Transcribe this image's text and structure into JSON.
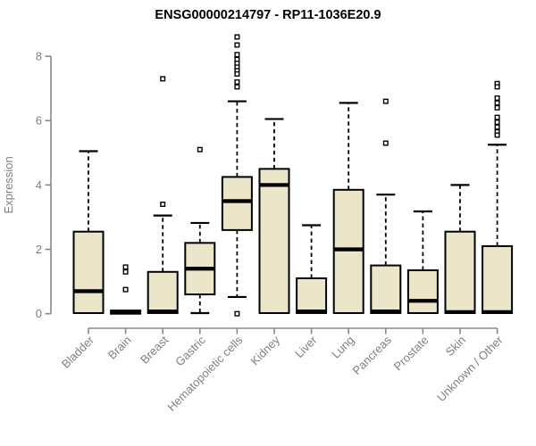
{
  "colors": {
    "background": "#ffffff",
    "box_fill": "#EBE5CA",
    "box_stroke": "#000000",
    "median_color": "#000000",
    "whisker_color": "#000000",
    "outlier_stroke": "#000000",
    "outlier_fill": "#ffffff",
    "axis_line": "#888888",
    "axis_text": "#808080",
    "title_color": "#000000"
  },
  "chart_data": {
    "type": "boxplot",
    "title": "ENSG00000214797 - RP11-1036E20.9",
    "xlabel": "",
    "ylabel": "Expression",
    "ylim": [
      0,
      8.7
    ],
    "yticks": [
      0,
      2,
      4,
      6,
      8
    ],
    "grid": "off",
    "legend": "none",
    "categories": [
      "Bladder",
      "Brain",
      "Breast",
      "Gastric",
      "Hematopoietic cells",
      "Kidney",
      "Liver",
      "Lung",
      "Pancreas",
      "Prostate",
      "Skin",
      "Unknown / Other"
    ],
    "series": [
      {
        "name": "Bladder",
        "whisker_low": 0.02,
        "q1": 0.02,
        "median": 0.7,
        "q3": 2.55,
        "whisker_high": 5.05,
        "outliers": []
      },
      {
        "name": "Brain",
        "whisker_low": 0.0,
        "q1": 0.0,
        "median": 0.04,
        "q3": 0.1,
        "whisker_high": 0.1,
        "outliers": [
          1.45,
          1.3,
          0.75
        ]
      },
      {
        "name": "Breast",
        "whisker_low": 0.02,
        "q1": 0.02,
        "median": 0.07,
        "q3": 1.3,
        "whisker_high": 3.05,
        "outliers": [
          3.4,
          7.3
        ]
      },
      {
        "name": "Gastric",
        "whisker_low": 0.02,
        "q1": 0.6,
        "median": 1.4,
        "q3": 2.2,
        "whisker_high": 2.82,
        "outliers": [
          5.1
        ]
      },
      {
        "name": "Hematopoietic cells",
        "whisker_low": 0.52,
        "q1": 2.6,
        "median": 3.5,
        "q3": 4.25,
        "whisker_high": 6.6,
        "outliers": [
          8.6,
          8.35,
          8.05,
          7.9,
          7.78,
          7.66,
          7.55,
          7.45,
          7.2,
          7.05,
          0.0
        ]
      },
      {
        "name": "Kidney",
        "whisker_low": 0.02,
        "q1": 0.02,
        "median": 4.0,
        "q3": 4.5,
        "whisker_high": 6.05,
        "outliers": []
      },
      {
        "name": "Liver",
        "whisker_low": 0.02,
        "q1": 0.02,
        "median": 0.07,
        "q3": 1.1,
        "whisker_high": 2.75,
        "outliers": []
      },
      {
        "name": "Lung",
        "whisker_low": 0.02,
        "q1": 0.02,
        "median": 2.0,
        "q3": 3.85,
        "whisker_high": 6.55,
        "outliers": []
      },
      {
        "name": "Pancreas",
        "whisker_low": 0.02,
        "q1": 0.02,
        "median": 0.07,
        "q3": 1.5,
        "whisker_high": 3.7,
        "outliers": [
          5.3,
          6.6
        ]
      },
      {
        "name": "Prostate",
        "whisker_low": 0.02,
        "q1": 0.02,
        "median": 0.4,
        "q3": 1.35,
        "whisker_high": 3.18,
        "outliers": []
      },
      {
        "name": "Skin",
        "whisker_low": 0.02,
        "q1": 0.02,
        "median": 0.05,
        "q3": 2.55,
        "whisker_high": 4.0,
        "outliers": []
      },
      {
        "name": "Unknown / Other",
        "whisker_low": 0.02,
        "q1": 0.02,
        "median": 0.05,
        "q3": 2.1,
        "whisker_high": 5.25,
        "outliers": [
          7.15,
          7.05,
          6.7,
          6.55,
          6.4,
          6.1,
          5.95,
          5.8,
          5.65,
          5.55
        ]
      }
    ]
  }
}
